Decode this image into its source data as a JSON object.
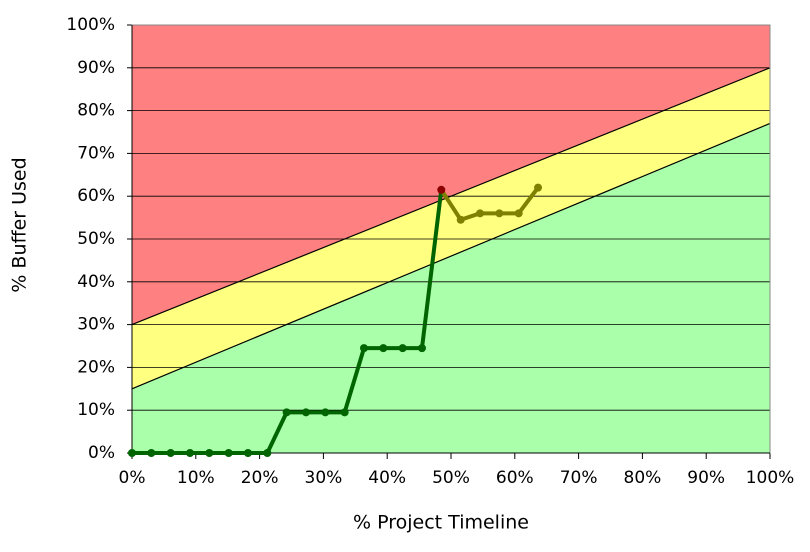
{
  "chart_data": {
    "type": "fever",
    "x_label": "% Project Timeline",
    "y_label": "% Buffer Used",
    "xlim": [
      0,
      100
    ],
    "ylim": [
      0,
      100
    ],
    "xticks": [
      {
        "value": 0,
        "label": "0%"
      },
      {
        "value": 10,
        "label": "10%"
      },
      {
        "value": 20,
        "label": "20%"
      },
      {
        "value": 30,
        "label": "30%"
      },
      {
        "value": 40,
        "label": "40%"
      },
      {
        "value": 50,
        "label": "50%"
      },
      {
        "value": 60,
        "label": "60%"
      },
      {
        "value": 70,
        "label": "70%"
      },
      {
        "value": 80,
        "label": "80%"
      },
      {
        "value": 90,
        "label": "90%"
      },
      {
        "value": 100,
        "label": "100%"
      }
    ],
    "yticks": [
      {
        "value": 0,
        "label": "0%"
      },
      {
        "value": 10,
        "label": "10%"
      },
      {
        "value": 20,
        "label": "20%"
      },
      {
        "value": 30,
        "label": "30%"
      },
      {
        "value": 40,
        "label": "40%"
      },
      {
        "value": 50,
        "label": "50%"
      },
      {
        "value": 60,
        "label": "60%"
      },
      {
        "value": 70,
        "label": "70%"
      },
      {
        "value": 80,
        "label": "80%"
      },
      {
        "value": 90,
        "label": "90%"
      },
      {
        "value": 100,
        "label": "100%"
      }
    ],
    "grid": true,
    "zones": [
      {
        "fill": "#aaffaa",
        "mark_color": "#006400",
        "upper": [
          15,
          77
        ]
      },
      {
        "fill": "#ffff80",
        "mark_color": "#808000",
        "upper": [
          30,
          90
        ]
      },
      {
        "fill": "#ff8080",
        "mark_color": "#8b0000",
        "upper": [
          100,
          100
        ]
      }
    ],
    "x": [
      0,
      3.03,
      6.06,
      9.09,
      12.12,
      15.15,
      18.18,
      21.21,
      24.24,
      27.27,
      30.3,
      33.33,
      36.36,
      39.39,
      42.42,
      45.45,
      48.48,
      51.52,
      54.55,
      57.58,
      60.61,
      63.64
    ],
    "values": [
      0,
      0,
      0,
      0,
      0,
      0,
      0,
      0,
      9.5,
      9.5,
      9.5,
      9.5,
      24.5,
      24.5,
      24.5,
      24.5,
      61.5,
      54.5,
      56,
      56,
      56,
      62
    ]
  }
}
